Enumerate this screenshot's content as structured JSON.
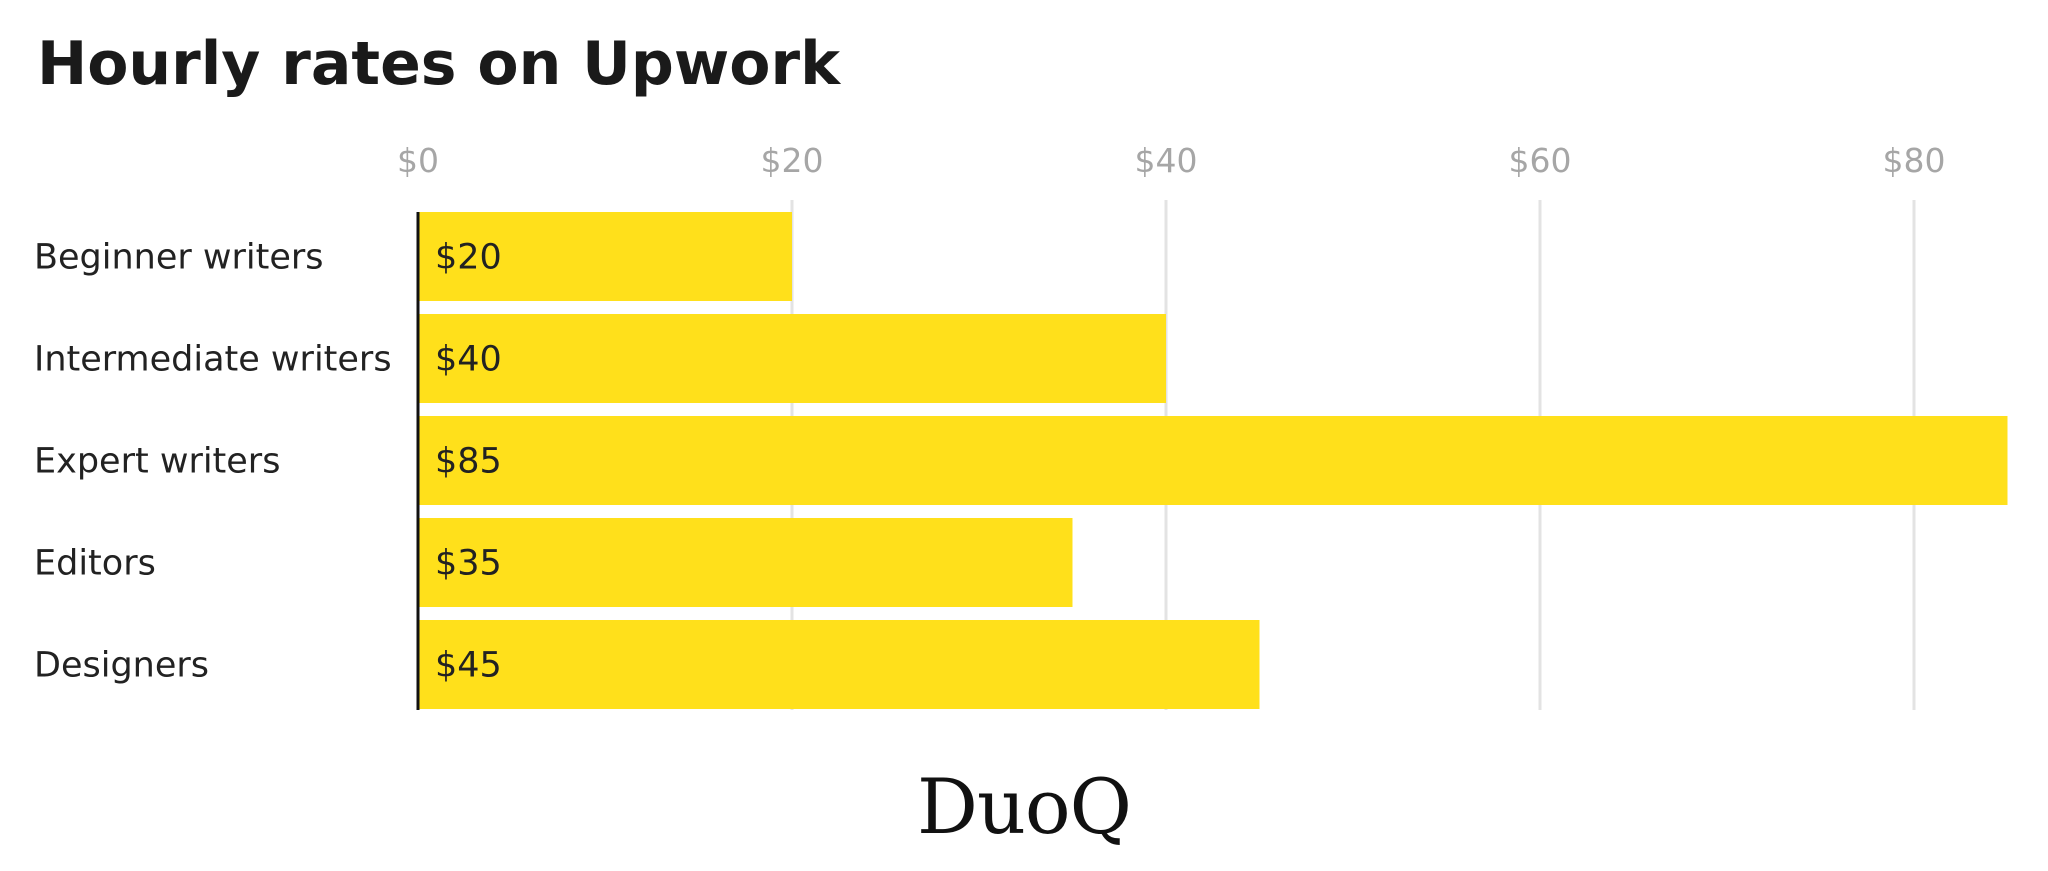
{
  "colors": {
    "bar": "#FFE01B",
    "grid": "#e3e3e3",
    "axis": "#111111",
    "tick_text": "#a6a6a6",
    "text": "#222222"
  },
  "logo": "DuoQ",
  "chart_data": {
    "type": "bar",
    "orientation": "horizontal",
    "title": "Hourly rates on Upwork",
    "xlabel": "",
    "ylabel": "",
    "categories": [
      "Beginner writers",
      "Intermediate writers",
      "Expert writers",
      "Editors",
      "Designers"
    ],
    "values": [
      20,
      40,
      85,
      35,
      45
    ],
    "value_labels": [
      "$20",
      "$40",
      "$85",
      "$35",
      "$45"
    ],
    "xlim": [
      0,
      85
    ],
    "ticks": [
      0,
      20,
      40,
      60,
      80
    ],
    "tick_labels": [
      "$0",
      "$20",
      "$40",
      "$60",
      "$80"
    ],
    "tick_position": "top",
    "grid": true,
    "legend": "none"
  }
}
